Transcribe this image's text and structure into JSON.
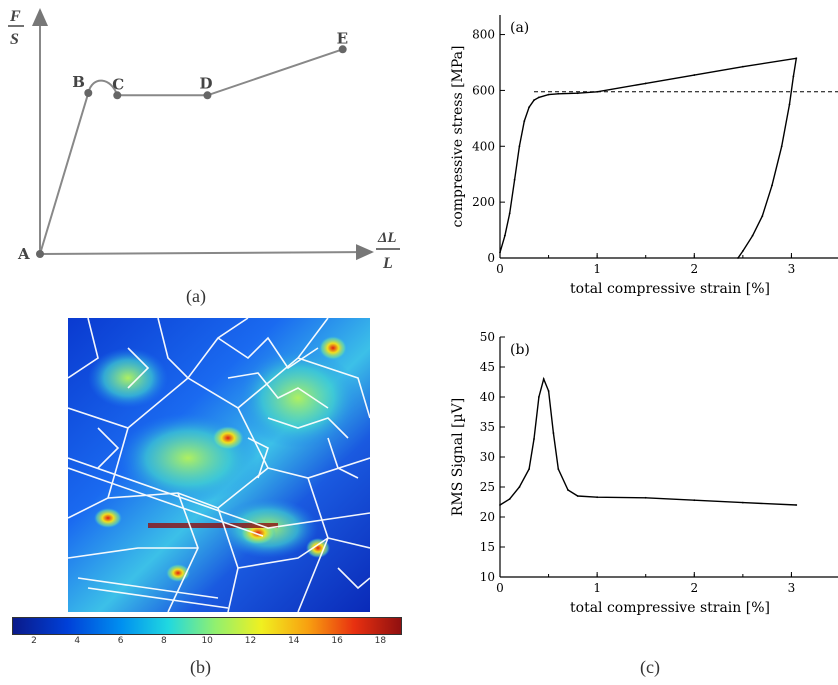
{
  "panel_labels": {
    "a": "(a)",
    "b": "(b)",
    "c": "(c)"
  },
  "sketch": {
    "y_axis_label_top": "F",
    "y_axis_label_bottom": "S",
    "x_axis_label_top": "ΔL",
    "x_axis_label_bottom": "L",
    "points": [
      {
        "name": "A",
        "x": 0,
        "y": 0
      },
      {
        "name": "B",
        "x": 0.15,
        "y": 0.7
      },
      {
        "name": "C",
        "x": 0.24,
        "y": 0.69
      },
      {
        "name": "D",
        "x": 0.52,
        "y": 0.69
      },
      {
        "name": "E",
        "x": 0.94,
        "y": 0.89
      }
    ]
  },
  "colorbar": {
    "ticks": [
      "2",
      "4",
      "6",
      "8",
      "10",
      "12",
      "14",
      "16",
      "18"
    ],
    "colors": [
      "#0a1a8a",
      "#0040d8",
      "#0090f0",
      "#20d8e0",
      "#90f070",
      "#f0f020",
      "#f8a010",
      "#e83010",
      "#901010"
    ]
  },
  "chart_data": [
    {
      "type": "line",
      "panel": "(a)",
      "xlabel": "total compressive strain [%]",
      "ylabel": "compressive stress [MPa]",
      "xlim": [
        0,
        3.5
      ],
      "ylim": [
        0,
        870
      ],
      "xticks": [
        "0",
        "1",
        "2",
        "3"
      ],
      "yticks": [
        "0",
        "200",
        "400",
        "600",
        "800"
      ],
      "reference_line": {
        "y": 595,
        "style": "dashed"
      },
      "series": [
        {
          "x": [
            0,
            0.05,
            0.1,
            0.15,
            0.2,
            0.25,
            0.3,
            0.35,
            0.4,
            0.5,
            0.6,
            0.8,
            1.0,
            1.5,
            2.0,
            2.5,
            3.05,
            3.02,
            2.98,
            2.9,
            2.8,
            2.7,
            2.6,
            2.5,
            2.45
          ],
          "y": [
            20,
            80,
            160,
            280,
            400,
            490,
            540,
            565,
            575,
            585,
            588,
            590,
            595,
            625,
            655,
            685,
            715,
            650,
            550,
            400,
            260,
            150,
            80,
            25,
            0
          ]
        }
      ]
    },
    {
      "type": "line",
      "panel": "(b)",
      "xlabel": "total compressive strain [%]",
      "ylabel": "RMS Signal [µV]",
      "xlim": [
        0,
        3.5
      ],
      "ylim": [
        10,
        50
      ],
      "xticks": [
        "0",
        "1",
        "2",
        "3"
      ],
      "yticks": [
        "10",
        "15",
        "20",
        "25",
        "30",
        "35",
        "40",
        "45",
        "50"
      ],
      "series": [
        {
          "x": [
            0,
            0.1,
            0.2,
            0.3,
            0.35,
            0.4,
            0.45,
            0.5,
            0.55,
            0.6,
            0.7,
            0.8,
            1.0,
            1.5,
            2.0,
            2.5,
            3.05
          ],
          "y": [
            22,
            23,
            25,
            28,
            33,
            40,
            43,
            41,
            34,
            28,
            24.5,
            23.5,
            23.3,
            23.2,
            22.8,
            22.4,
            22
          ]
        }
      ]
    }
  ]
}
